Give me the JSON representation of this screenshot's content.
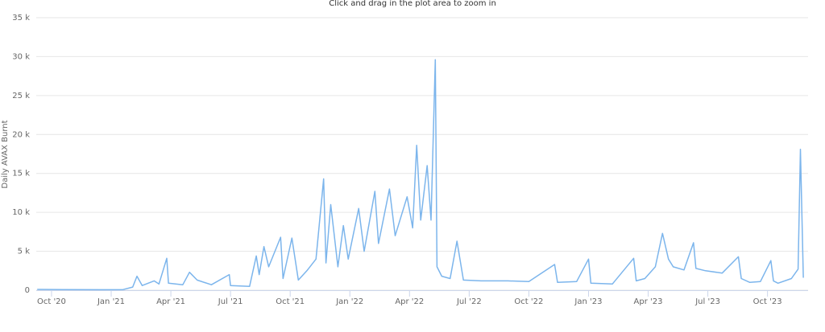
{
  "chart_data": {
    "type": "line",
    "subtitle": "Click and drag in the plot area to zoom in",
    "y_label": "Daily AVAX Burnt",
    "grid": true,
    "xlim": [
      2020.686,
      2023.92
    ],
    "ylim": [
      0,
      35000
    ],
    "xticks": [
      {
        "value": 2020.75,
        "label": "Oct '20"
      },
      {
        "value": 2021.0,
        "label": "Jan '21"
      },
      {
        "value": 2021.25,
        "label": "Apr '21"
      },
      {
        "value": 2021.5,
        "label": "Jul '21"
      },
      {
        "value": 2021.75,
        "label": "Oct '21"
      },
      {
        "value": 2022.0,
        "label": "Jan '22"
      },
      {
        "value": 2022.25,
        "label": "Apr '22"
      },
      {
        "value": 2022.5,
        "label": "Jul '22"
      },
      {
        "value": 2022.75,
        "label": "Oct '22"
      },
      {
        "value": 2023.0,
        "label": "Jan '23"
      },
      {
        "value": 2023.25,
        "label": "Apr '23"
      },
      {
        "value": 2023.5,
        "label": "Jul '23"
      },
      {
        "value": 2023.75,
        "label": "Oct '23"
      }
    ],
    "yticks": [
      0,
      {
        "value": 5000,
        "label": "5 k"
      },
      {
        "value": 10000,
        "label": "10 k"
      },
      {
        "value": 15000,
        "label": "15 k"
      },
      {
        "value": 20000,
        "label": "20 k"
      },
      {
        "value": 25000,
        "label": "25 k"
      },
      {
        "value": 30000,
        "label": "30 k"
      },
      {
        "value": 35000,
        "label": "35 k"
      }
    ],
    "series": [
      {
        "name": "Daily AVAX Burnt",
        "color": "#7cb5ec",
        "x": [
          2020.69,
          2020.8,
          2020.95,
          2021.05,
          2021.09,
          2021.108,
          2021.13,
          2021.18,
          2021.2,
          2021.233,
          2021.24,
          2021.3,
          2021.328,
          2021.36,
          2021.42,
          2021.495,
          2021.5,
          2021.58,
          2021.608,
          2021.62,
          2021.64,
          2021.66,
          2021.71,
          2021.72,
          2021.757,
          2021.784,
          2021.82,
          2021.858,
          2021.89,
          2021.9,
          2021.92,
          2021.95,
          2021.973,
          2021.993,
          2022.037,
          2022.06,
          2022.105,
          2022.12,
          2022.166,
          2022.19,
          2022.24,
          2022.263,
          2022.28,
          2022.297,
          2022.324,
          2022.34,
          2022.358,
          2022.365,
          2022.385,
          2022.42,
          2022.449,
          2022.476,
          2022.55,
          2022.662,
          2022.75,
          2022.858,
          2022.87,
          2022.95,
          2023.0,
          2023.01,
          2023.1,
          2023.189,
          2023.2,
          2023.236,
          2023.28,
          2023.31,
          2023.335,
          2023.355,
          2023.4,
          2023.44,
          2023.45,
          2023.49,
          2023.56,
          2023.628,
          2023.64,
          2023.676,
          2023.72,
          2023.764,
          2023.775,
          2023.794,
          2023.85,
          2023.878,
          2023.888,
          2023.9
        ],
        "values": [
          100,
          80,
          60,
          80,
          400,
          1800,
          600,
          1200,
          800,
          4100,
          900,
          700,
          2300,
          1300,
          700,
          2000,
          600,
          500,
          4400,
          2000,
          5600,
          3000,
          6800,
          1500,
          6700,
          1300,
          2500,
          4000,
          14300,
          3500,
          11000,
          3000,
          8300,
          4000,
          10500,
          5000,
          12700,
          6000,
          13000,
          7000,
          12000,
          8000,
          18600,
          9000,
          16000,
          9000,
          29600,
          3000,
          1800,
          1500,
          6300,
          1300,
          1200,
          1200,
          1100,
          3300,
          1000,
          1100,
          4000,
          900,
          800,
          4100,
          1200,
          1500,
          3000,
          7300,
          4000,
          3000,
          2600,
          6100,
          2800,
          2500,
          2200,
          4300,
          1500,
          1000,
          1100,
          3800,
          1200,
          900,
          1500,
          2700,
          18100,
          1600
        ]
      }
    ]
  }
}
